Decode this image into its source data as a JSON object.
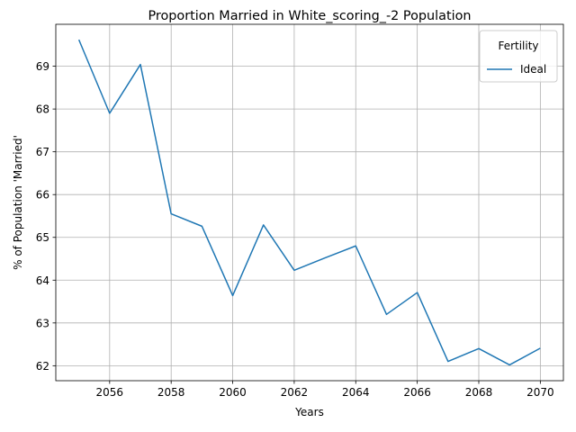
{
  "chart_data": {
    "type": "line",
    "title": "Proportion Married in White_scoring_-2 Population",
    "xlabel": "Years",
    "ylabel": "% of Population 'Married'",
    "x": [
      2055,
      2056,
      2057,
      2058,
      2059,
      2060,
      2061,
      2062,
      2063,
      2064,
      2065,
      2066,
      2067,
      2068,
      2069,
      2070
    ],
    "series": [
      {
        "name": "Ideal",
        "color": "#1f77b4",
        "values": [
          69.62,
          67.9,
          69.04,
          65.55,
          65.26,
          63.64,
          65.29,
          64.23,
          64.52,
          64.8,
          63.2,
          63.71,
          62.1,
          62.4,
          62.02,
          62.41
        ]
      }
    ],
    "xticks": [
      2056,
      2058,
      2060,
      2062,
      2064,
      2066,
      2068,
      2070
    ],
    "yticks": [
      62,
      63,
      64,
      65,
      66,
      67,
      68,
      69
    ],
    "xlim": [
      2054.25,
      2070.75
    ],
    "ylim": [
      61.65,
      69.98
    ],
    "grid": true,
    "legend": {
      "title": "Fertility",
      "position": "top-right"
    }
  }
}
